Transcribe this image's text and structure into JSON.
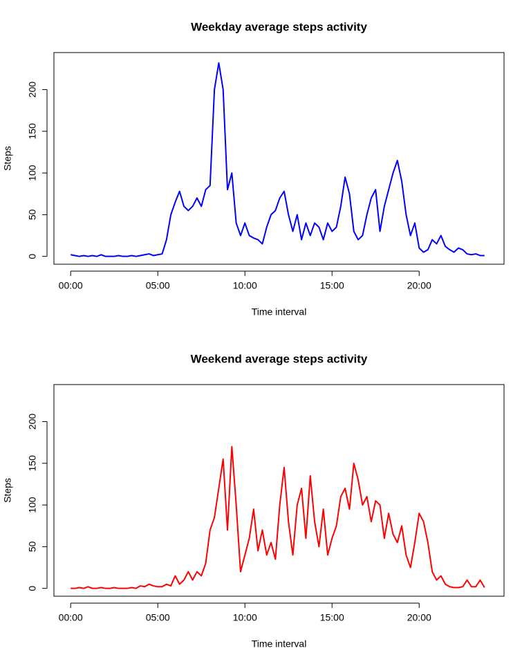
{
  "chart_data": [
    {
      "type": "line",
      "title": "Weekday average steps activity",
      "x_label": "Time interval",
      "y_label": "Steps",
      "x": [
        0,
        0.25,
        0.5,
        0.75,
        1,
        1.25,
        1.5,
        1.75,
        2,
        2.25,
        2.5,
        2.75,
        3,
        3.25,
        3.5,
        3.75,
        4,
        4.25,
        4.5,
        4.75,
        5,
        5.25,
        5.5,
        5.75,
        6,
        6.25,
        6.5,
        6.75,
        7,
        7.25,
        7.5,
        7.75,
        8,
        8.25,
        8.5,
        8.75,
        9,
        9.25,
        9.5,
        9.75,
        10,
        10.25,
        10.5,
        10.75,
        11,
        11.25,
        11.5,
        11.75,
        12,
        12.25,
        12.5,
        12.75,
        13,
        13.25,
        13.5,
        13.75,
        14,
        14.25,
        14.5,
        14.75,
        15,
        15.25,
        15.5,
        15.75,
        16,
        16.25,
        16.5,
        16.75,
        17,
        17.25,
        17.5,
        17.75,
        18,
        18.25,
        18.5,
        18.75,
        19,
        19.25,
        19.5,
        19.75,
        20,
        20.25,
        20.5,
        20.75,
        21,
        21.25,
        21.5,
        21.75,
        22,
        22.25,
        22.5,
        22.75,
        23,
        23.25,
        23.5,
        23.75
      ],
      "series": [
        {
          "color": "#0000ff",
          "values": [
            2,
            1,
            0,
            1,
            0,
            1,
            0,
            2,
            0,
            0,
            0,
            1,
            0,
            0,
            1,
            0,
            1,
            2,
            3,
            1,
            2,
            3,
            20,
            50,
            65,
            78,
            60,
            55,
            60,
            70,
            60,
            80,
            85,
            200,
            232,
            200,
            80,
            100,
            40,
            25,
            40,
            25,
            22,
            20,
            15,
            35,
            50,
            55,
            70,
            78,
            50,
            30,
            50,
            20,
            40,
            25,
            40,
            35,
            20,
            40,
            30,
            35,
            60,
            95,
            75,
            30,
            20,
            25,
            50,
            70,
            80,
            30,
            60,
            80,
            100,
            115,
            90,
            50,
            25,
            40,
            10,
            5,
            8,
            20,
            15,
            25,
            12,
            8,
            5,
            10,
            8,
            3,
            2,
            3,
            1,
            1
          ]
        }
      ],
      "xlim": [
        -0.96,
        24.87
      ],
      "xticks": [
        {
          "value": 0,
          "label": "00:00"
        },
        {
          "value": 5,
          "label": "05:00"
        },
        {
          "value": 10,
          "label": "10:00"
        },
        {
          "value": 15,
          "label": "15:00"
        },
        {
          "value": 20,
          "label": "20:00"
        }
      ],
      "ylim": [
        -9.4,
        244.4
      ],
      "yticks": [
        0,
        50,
        100,
        150,
        200
      ]
    },
    {
      "type": "line",
      "title": "Weekend average steps activity",
      "x_label": "Time interval",
      "y_label": "Steps",
      "x": [
        0,
        0.25,
        0.5,
        0.75,
        1,
        1.25,
        1.5,
        1.75,
        2,
        2.25,
        2.5,
        2.75,
        3,
        3.25,
        3.5,
        3.75,
        4,
        4.25,
        4.5,
        4.75,
        5,
        5.25,
        5.5,
        5.75,
        6,
        6.25,
        6.5,
        6.75,
        7,
        7.25,
        7.5,
        7.75,
        8,
        8.25,
        8.5,
        8.75,
        9,
        9.25,
        9.5,
        9.75,
        10,
        10.25,
        10.5,
        10.75,
        11,
        11.25,
        11.5,
        11.75,
        12,
        12.25,
        12.5,
        12.75,
        13,
        13.25,
        13.5,
        13.75,
        14,
        14.25,
        14.5,
        14.75,
        15,
        15.25,
        15.5,
        15.75,
        16,
        16.25,
        16.5,
        16.75,
        17,
        17.25,
        17.5,
        17.75,
        18,
        18.25,
        18.5,
        18.75,
        19,
        19.25,
        19.5,
        19.75,
        20,
        20.25,
        20.5,
        20.75,
        21,
        21.25,
        21.5,
        21.75,
        22,
        22.25,
        22.5,
        22.75,
        23,
        23.25,
        23.5,
        23.75
      ],
      "series": [
        {
          "color": "#ff0000",
          "values": [
            0,
            0,
            1,
            0,
            2,
            0,
            0,
            1,
            0,
            0,
            1,
            0,
            0,
            0,
            1,
            0,
            3,
            2,
            5,
            3,
            2,
            2,
            5,
            3,
            15,
            5,
            10,
            20,
            10,
            20,
            15,
            30,
            70,
            85,
            120,
            155,
            70,
            170,
            100,
            20,
            40,
            60,
            95,
            45,
            70,
            40,
            55,
            35,
            100,
            145,
            80,
            40,
            100,
            120,
            60,
            135,
            80,
            50,
            95,
            40,
            60,
            75,
            110,
            120,
            95,
            150,
            130,
            100,
            110,
            80,
            105,
            100,
            60,
            90,
            65,
            55,
            75,
            40,
            25,
            55,
            90,
            80,
            55,
            20,
            10,
            15,
            5,
            2,
            1,
            1,
            2,
            10,
            2,
            2,
            10,
            1
          ]
        }
      ],
      "xlim": [
        -0.96,
        24.87
      ],
      "xticks": [
        {
          "value": 0,
          "label": "00:00"
        },
        {
          "value": 5,
          "label": "05:00"
        },
        {
          "value": 10,
          "label": "10:00"
        },
        {
          "value": 15,
          "label": "15:00"
        },
        {
          "value": 20,
          "label": "20:00"
        }
      ],
      "ylim": [
        -9.4,
        244.4
      ],
      "yticks": [
        0,
        50,
        100,
        150,
        200
      ]
    }
  ]
}
